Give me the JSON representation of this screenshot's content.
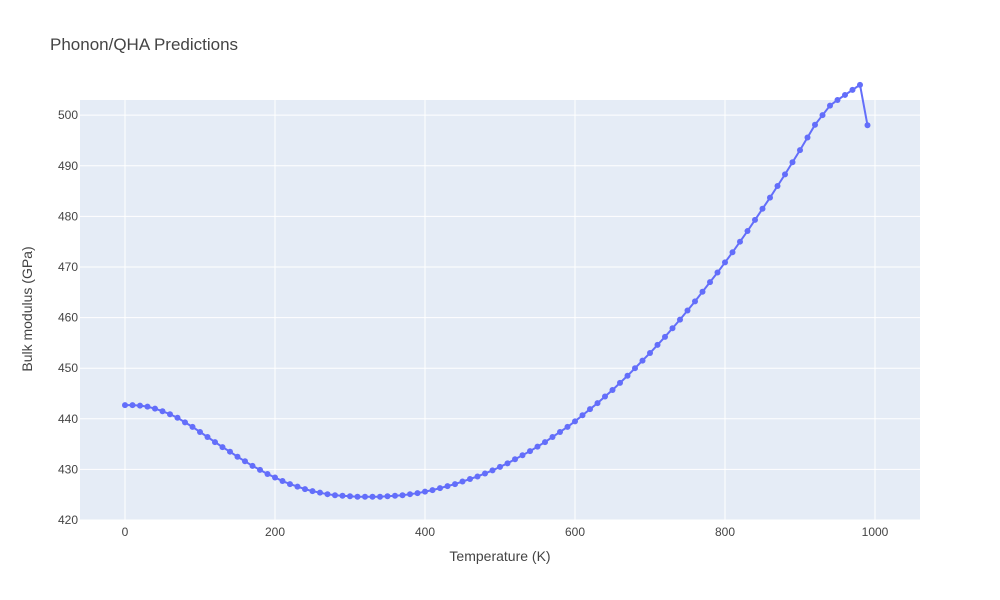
{
  "chart_data": {
    "type": "line",
    "title": "Phonon/QHA Predictions",
    "xlabel": "Temperature (K)",
    "ylabel": "Bulk modulus (GPa)",
    "xlim": [
      -60,
      1060
    ],
    "ylim": [
      420,
      503
    ],
    "xticks": [
      0,
      200,
      400,
      600,
      800,
      1000
    ],
    "yticks": [
      420,
      430,
      440,
      450,
      460,
      470,
      480,
      490,
      500
    ],
    "grid": true,
    "colors": {
      "series": "#636efa",
      "plot_bg": "#e5ecf6",
      "grid": "#ffffff",
      "text": "#444444"
    },
    "series": [
      {
        "x": [
          0,
          10,
          20,
          30,
          40,
          50,
          60,
          70,
          80,
          90,
          100,
          110,
          120,
          130,
          140,
          150,
          160,
          170,
          180,
          190,
          200,
          210,
          220,
          230,
          240,
          250,
          260,
          270,
          280,
          290,
          300,
          310,
          320,
          330,
          340,
          350,
          360,
          370,
          380,
          390,
          400,
          410,
          420,
          430,
          440,
          450,
          460,
          470,
          480,
          490,
          500,
          510,
          520,
          530,
          540,
          550,
          560,
          570,
          580,
          590,
          600,
          610,
          620,
          630,
          640,
          650,
          660,
          670,
          680,
          690,
          700,
          710,
          720,
          730,
          740,
          750,
          760,
          770,
          780,
          790,
          800,
          810,
          820,
          830,
          840,
          850,
          860,
          870,
          880,
          890,
          900,
          910,
          920,
          930,
          940,
          950,
          960,
          970,
          980,
          990
        ],
        "y": [
          442.7,
          442.7,
          442.6,
          442.4,
          442.0,
          441.5,
          440.9,
          440.2,
          439.3,
          438.4,
          437.4,
          436.4,
          435.4,
          434.4,
          433.5,
          432.5,
          431.6,
          430.7,
          429.9,
          429.1,
          428.4,
          427.7,
          427.1,
          426.6,
          426.1,
          425.7,
          425.4,
          425.1,
          424.9,
          424.8,
          424.7,
          424.6,
          424.6,
          424.6,
          424.6,
          424.7,
          424.8,
          424.9,
          425.1,
          425.3,
          425.6,
          425.9,
          426.3,
          426.7,
          427.1,
          427.6,
          428.1,
          428.6,
          429.2,
          429.8,
          430.5,
          431.2,
          432.0,
          432.8,
          433.6,
          434.5,
          435.4,
          436.4,
          437.4,
          438.4,
          439.5,
          440.7,
          441.9,
          443.1,
          444.4,
          445.7,
          447.1,
          448.5,
          450.0,
          451.5,
          453.0,
          454.6,
          456.2,
          457.9,
          459.6,
          461.4,
          463.2,
          465.1,
          467.0,
          468.9,
          470.9,
          472.9,
          475.0,
          477.1,
          479.3,
          481.5,
          483.7,
          486.0,
          488.3,
          490.7,
          493.1,
          495.6,
          498.1,
          500.0,
          501.9,
          503.0,
          504.0,
          505.0,
          506.0,
          498.0
        ]
      }
    ]
  }
}
